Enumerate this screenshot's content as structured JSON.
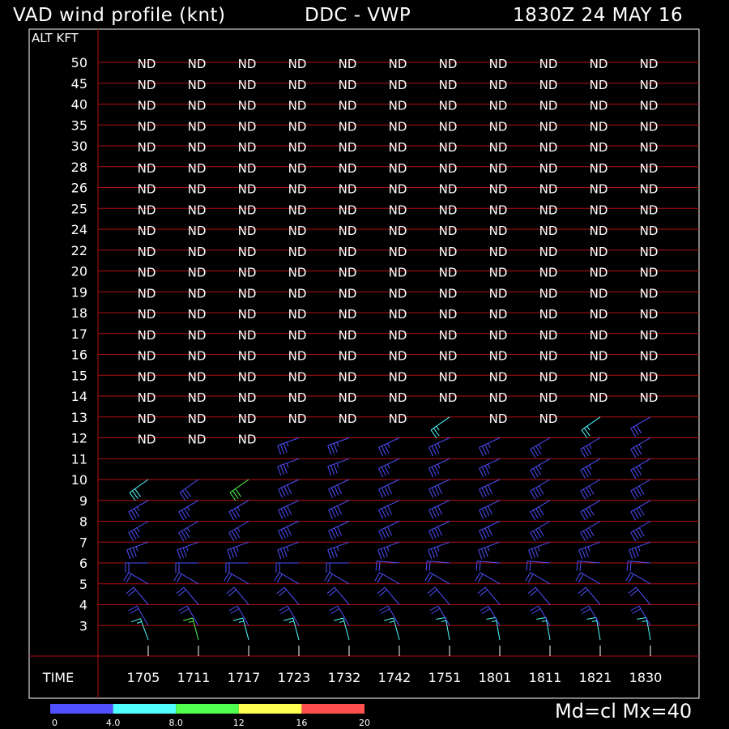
{
  "header": {
    "title": "VAD wind profile (knt)",
    "station": "DDC  -  VWP",
    "datetime": "1830Z 24 MAY 16"
  },
  "footer": {
    "time_label": "TIME",
    "mode": "Md=cl Mx=40"
  },
  "colors": {
    "background": "#000000",
    "frame": "#ffffff",
    "gridline": "#b01010",
    "text": "#ffffff"
  },
  "chart_data": {
    "type": "table",
    "ylabel": "ALT KFT",
    "xlabel": "TIME",
    "altitudes": [
      "50",
      "45",
      "40",
      "35",
      "30",
      "28",
      "26",
      "25",
      "24",
      "22",
      "20",
      "19",
      "18",
      "17",
      "16",
      "15",
      "14",
      "13",
      "12",
      "11",
      "10",
      "9",
      "8",
      "7",
      "6",
      "5",
      "4",
      "3"
    ],
    "times": [
      "1705",
      "1711",
      "1717",
      "1723",
      "1732",
      "1742",
      "1751",
      "1801",
      "1811",
      "1821",
      "1830"
    ],
    "nd_top_rows": [
      "50",
      "45",
      "40",
      "35",
      "30",
      "28",
      "26",
      "25",
      "24",
      "22",
      "20",
      "19",
      "18",
      "17",
      "16",
      "15",
      "14"
    ],
    "nd_partial": [
      {
        "alt": "13",
        "times": [
          "1705",
          "1711",
          "1717",
          "1723",
          "1732",
          "1742",
          "1801",
          "1811"
        ]
      },
      {
        "alt": "12",
        "times": [
          "1705",
          "1711",
          "1717"
        ]
      }
    ],
    "wind_dir_deg": {
      "13": [
        null,
        null,
        null,
        null,
        null,
        null,
        235,
        null,
        null,
        235,
        240
      ],
      "12": [
        null,
        null,
        null,
        250,
        250,
        245,
        245,
        245,
        240,
        240,
        240
      ],
      "11": [
        null,
        null,
        null,
        250,
        250,
        245,
        245,
        245,
        240,
        240,
        240
      ],
      "10": [
        235,
        235,
        235,
        245,
        245,
        245,
        245,
        245,
        240,
        240,
        240
      ],
      "9": [
        240,
        240,
        240,
        245,
        245,
        245,
        245,
        245,
        240,
        240,
        240
      ],
      "8": [
        240,
        240,
        240,
        245,
        245,
        245,
        245,
        245,
        240,
        240,
        240
      ],
      "7": [
        250,
        250,
        250,
        250,
        250,
        250,
        250,
        250,
        250,
        250,
        250
      ],
      "6": [
        270,
        270,
        270,
        270,
        270,
        275,
        275,
        275,
        275,
        275,
        275
      ],
      "5": [
        300,
        300,
        300,
        300,
        300,
        300,
        300,
        300,
        300,
        300,
        300
      ],
      "4": [
        320,
        320,
        320,
        320,
        320,
        320,
        320,
        320,
        320,
        320,
        320
      ],
      "3": [
        330,
        330,
        330,
        330,
        330,
        330,
        330,
        330,
        330,
        330,
        330
      ],
      "2": [
        340,
        345,
        345,
        345,
        345,
        345,
        350,
        350,
        350,
        350,
        350
      ]
    },
    "wind_speed_kt": {
      "13": [
        null,
        null,
        null,
        null,
        null,
        null,
        25,
        null,
        null,
        25,
        30
      ],
      "12": [
        null,
        null,
        null,
        35,
        35,
        35,
        35,
        35,
        35,
        35,
        35
      ],
      "11": [
        null,
        null,
        null,
        35,
        35,
        35,
        35,
        35,
        35,
        35,
        35
      ],
      "10": [
        30,
        30,
        30,
        40,
        40,
        40,
        40,
        40,
        40,
        40,
        40
      ],
      "9": [
        35,
        35,
        35,
        40,
        40,
        40,
        40,
        40,
        40,
        40,
        40
      ],
      "8": [
        35,
        35,
        35,
        40,
        40,
        40,
        40,
        40,
        40,
        40,
        40
      ],
      "7": [
        35,
        35,
        35,
        35,
        35,
        35,
        35,
        35,
        35,
        35,
        35
      ],
      "6": [
        20,
        20,
        20,
        20,
        20,
        20,
        20,
        20,
        20,
        20,
        20
      ],
      "5": [
        20,
        20,
        20,
        20,
        20,
        20,
        20,
        20,
        20,
        20,
        20
      ],
      "4": [
        20,
        20,
        20,
        20,
        20,
        20,
        20,
        20,
        20,
        20,
        20
      ],
      "3": [
        20,
        20,
        20,
        20,
        20,
        20,
        20,
        20,
        20,
        20,
        20
      ],
      "2": [
        15,
        15,
        15,
        15,
        15,
        15,
        15,
        15,
        15,
        15,
        15
      ]
    },
    "rms_color_index": {
      "13": [
        null,
        null,
        null,
        null,
        null,
        null,
        1,
        null,
        null,
        1,
        0
      ],
      "10": [
        1,
        0,
        2,
        0,
        0,
        0,
        0,
        0,
        0,
        0,
        0
      ],
      "2": [
        1,
        2,
        1,
        1,
        1,
        1,
        1,
        1,
        1,
        1,
        1
      ]
    },
    "color_scale": {
      "labels": [
        "0",
        "4.0",
        "8.0",
        "12",
        "16",
        "20"
      ],
      "colors": [
        "#5050ff",
        "#50ffff",
        "#50ff50",
        "#ffff50",
        "#ff5050"
      ]
    }
  }
}
